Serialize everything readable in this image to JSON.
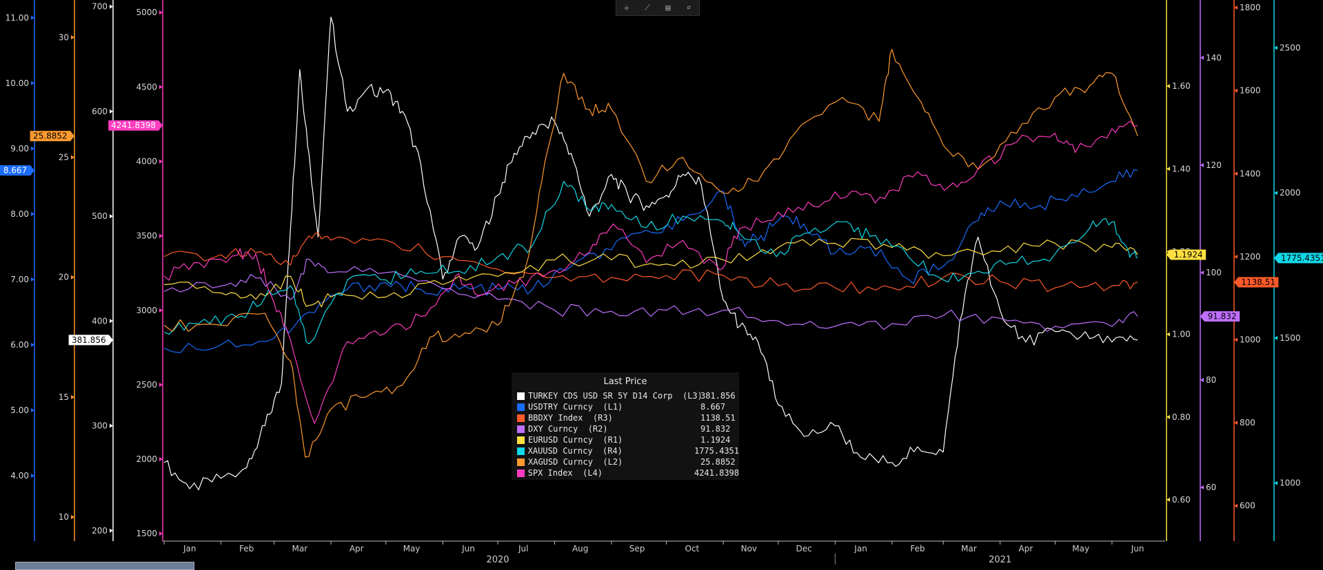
{
  "toolbar": {
    "icons": [
      "crosshair-icon",
      "draw-icon",
      "table-icon",
      "zoom-icon"
    ],
    "glyphs": [
      "✛",
      "⟋",
      "▤",
      "⌕"
    ]
  },
  "legend": {
    "title": "Last Price",
    "rows": [
      {
        "name": "TURKEY CDS USD SR 5Y D14 Corp  (L3)",
        "value": "381.856",
        "color": "#ffffff"
      },
      {
        "name": "USDTRY Curncy  (L1)",
        "value": "8.667",
        "color": "#1a6cff"
      },
      {
        "name": "BBDXY Index  (R3)",
        "value": "1138.51",
        "color": "#ff5a2a"
      },
      {
        "name": "DXY Curncy  (R2)",
        "value": "91.832",
        "color": "#c070ff"
      },
      {
        "name": "EURUSD Curncy  (R1)",
        "value": "1.1924",
        "color": "#ffe040"
      },
      {
        "name": "XAUUSD Curncy  (R4)",
        "value": "1775.4351",
        "color": "#10d8e8"
      },
      {
        "name": "XAGUSD Curncy  (L2)",
        "value": "25.8852",
        "color": "#ff9a30"
      },
      {
        "name": "SPX Index  (L4)",
        "value": "4241.8398",
        "color": "#ff3cc0"
      }
    ]
  },
  "chart_data": {
    "type": "line",
    "x_axis": {
      "months": [
        "Jan",
        "Feb",
        "Mar",
        "Apr",
        "May",
        "Jun",
        "Jul",
        "Aug",
        "Sep",
        "Oct",
        "Nov",
        "Dec",
        "Jan",
        "Feb",
        "Mar",
        "Apr",
        "May",
        "Jun"
      ],
      "years": [
        "2020",
        "2021"
      ],
      "range": [
        "2020-01-01",
        "2021-06-30"
      ]
    },
    "axes": {
      "L1": {
        "color": "#1a6cff",
        "ticks": [
          "4.00",
          "5.00",
          "6.00",
          "7.00",
          "8.00",
          "9.00",
          "10.00",
          "11.00"
        ],
        "range": [
          3.0,
          11.25
        ],
        "last": "8.667"
      },
      "L2": {
        "color": "#ff9a30",
        "ticks": [
          "10",
          "15",
          "20",
          "25",
          "30"
        ],
        "range": [
          9,
          31.5
        ],
        "last": "25.8852"
      },
      "L3": {
        "color": "#ffffff",
        "ticks": [
          "200",
          "300",
          "400",
          "500",
          "600",
          "700"
        ],
        "range": [
          190,
          705
        ],
        "last": "381.856"
      },
      "L4": {
        "color": "#ff3cc0",
        "ticks": [
          "1500",
          "2000",
          "2500",
          "3000",
          "3500",
          "4000",
          "4500",
          "5000"
        ],
        "range": [
          1450,
          5075
        ],
        "last": "4241.8398"
      },
      "R1": {
        "color": "#ffe040",
        "ticks": [
          "0.60",
          "0.80",
          "1.00",
          "1.20",
          "1.40",
          "1.60"
        ],
        "range": [
          0.5,
          1.805
        ],
        "last": "1.1924"
      },
      "R2": {
        "color": "#c070ff",
        "ticks": [
          "60",
          "80",
          "100",
          "120",
          "140"
        ],
        "range": [
          50,
          150.5
        ],
        "last": "91.832"
      },
      "R3": {
        "color": "#ff5a2a",
        "ticks": [
          "600",
          "800",
          "1000",
          "1200",
          "1400",
          "1600",
          "1800"
        ],
        "range": [
          515,
          1815
        ],
        "last": "1138.51"
      },
      "R4": {
        "color": "#10d8e8",
        "ticks": [
          "1000",
          "1500",
          "2000",
          "2500"
        ],
        "range": [
          800,
          2660
        ],
        "last": "1775.4351"
      }
    },
    "series": [
      {
        "name": "TURKEY CDS USD SR 5Y D14 Corp  (L3)",
        "axis": "L3",
        "color": "#ffffff",
        "x": [
          "2020-01-01",
          "2020-01-15",
          "2020-02-01",
          "2020-02-15",
          "2020-02-25",
          "2020-03-05",
          "2020-03-10",
          "2020-03-15",
          "2020-03-20",
          "2020-03-25",
          "2020-04-01",
          "2020-04-10",
          "2020-04-20",
          "2020-05-01",
          "2020-05-10",
          "2020-05-20",
          "2020-06-01",
          "2020-06-10",
          "2020-06-20",
          "2020-07-01",
          "2020-07-10",
          "2020-07-20",
          "2020-08-01",
          "2020-08-10",
          "2020-08-20",
          "2020-09-01",
          "2020-09-10",
          "2020-09-20",
          "2020-10-01",
          "2020-10-10",
          "2020-10-20",
          "2020-11-01",
          "2020-11-10",
          "2020-11-20",
          "2020-12-01",
          "2020-12-15",
          "2021-01-01",
          "2021-01-15",
          "2021-02-01",
          "2021-02-15",
          "2021-03-01",
          "2021-03-10",
          "2021-03-20",
          "2021-04-01",
          "2021-04-15",
          "2021-05-01",
          "2021-05-15",
          "2021-06-01",
          "2021-06-15"
        ],
        "y": [
          265,
          240,
          250,
          260,
          300,
          340,
          490,
          640,
          560,
          480,
          690,
          600,
          620,
          620,
          600,
          550,
          440,
          480,
          470,
          520,
          560,
          580,
          590,
          560,
          500,
          540,
          520,
          510,
          520,
          540,
          530,
          420,
          395,
          380,
          320,
          290,
          300,
          270,
          265,
          280,
          275,
          400,
          480,
          410,
          380,
          390,
          385,
          380,
          381.856
        ]
      },
      {
        "name": "USDTRY Curncy  (L1)",
        "axis": "L1",
        "color": "#1a6cff",
        "x": [
          "2020-01-01",
          "2020-02-01",
          "2020-03-01",
          "2020-03-20",
          "2020-04-10",
          "2020-05-01",
          "2020-05-20",
          "2020-06-10",
          "2020-07-01",
          "2020-07-20",
          "2020-08-10",
          "2020-09-01",
          "2020-09-20",
          "2020-10-10",
          "2020-11-01",
          "2020-11-10",
          "2020-11-20",
          "2020-12-01",
          "2020-12-15",
          "2021-01-01",
          "2021-01-20",
          "2021-02-10",
          "2021-03-01",
          "2021-03-20",
          "2021-04-01",
          "2021-04-20",
          "2021-05-10",
          "2021-06-01",
          "2021-06-15"
        ],
        "y": [
          5.95,
          6.0,
          6.1,
          6.5,
          6.85,
          6.95,
          6.85,
          6.85,
          6.85,
          6.85,
          7.2,
          7.45,
          7.75,
          7.9,
          8.35,
          7.6,
          7.6,
          7.9,
          7.85,
          7.4,
          7.5,
          7.0,
          7.2,
          7.9,
          8.2,
          8.1,
          8.3,
          8.5,
          8.667
        ]
      },
      {
        "name": "BBDXY Index  (R3)",
        "axis": "R3",
        "color": "#ff5a2a",
        "x": [
          "2020-01-01",
          "2020-02-01",
          "2020-02-20",
          "2020-03-10",
          "2020-03-20",
          "2020-04-01",
          "2020-05-01",
          "2020-06-01",
          "2020-07-01",
          "2020-08-01",
          "2020-09-01",
          "2020-10-01",
          "2020-11-01",
          "2020-12-01",
          "2021-01-01",
          "2021-02-01",
          "2021-03-01",
          "2021-04-01",
          "2021-05-01",
          "2021-06-01",
          "2021-06-15"
        ],
        "y": [
          1200,
          1205,
          1210,
          1180,
          1250,
          1240,
          1240,
          1200,
          1170,
          1150,
          1150,
          1155,
          1155,
          1130,
          1125,
          1125,
          1150,
          1140,
          1125,
          1130,
          1138.51
        ]
      },
      {
        "name": "DXY Curncy  (R2)",
        "axis": "R2",
        "color": "#c070ff",
        "x": [
          "2020-01-01",
          "2020-02-01",
          "2020-02-20",
          "2020-03-10",
          "2020-03-20",
          "2020-04-01",
          "2020-05-01",
          "2020-06-01",
          "2020-07-01",
          "2020-08-01",
          "2020-09-01",
          "2020-10-01",
          "2020-11-01",
          "2020-12-01",
          "2021-01-01",
          "2021-02-01",
          "2021-03-01",
          "2021-04-01",
          "2021-05-01",
          "2021-06-01",
          "2021-06-15"
        ],
        "y": [
          96.5,
          97.5,
          99,
          95,
          102.5,
          100,
          100,
          97,
          95,
          93,
          92.8,
          93,
          93,
          91,
          90,
          90.5,
          92,
          91.5,
          90,
          90,
          91.832
        ]
      },
      {
        "name": "EURUSD Curncy  (R1)",
        "axis": "R1",
        "color": "#ffe040",
        "x": [
          "2020-01-01",
          "2020-02-01",
          "2020-02-20",
          "2020-03-10",
          "2020-03-20",
          "2020-04-01",
          "2020-05-01",
          "2020-06-01",
          "2020-07-01",
          "2020-08-01",
          "2020-09-01",
          "2020-10-01",
          "2020-11-01",
          "2020-12-01",
          "2021-01-01",
          "2021-02-01",
          "2021-03-01",
          "2021-04-01",
          "2021-05-01",
          "2021-06-01",
          "2021-06-15"
        ],
        "y": [
          1.12,
          1.1,
          1.085,
          1.14,
          1.07,
          1.09,
          1.09,
          1.12,
          1.14,
          1.18,
          1.18,
          1.17,
          1.18,
          1.21,
          1.22,
          1.21,
          1.19,
          1.2,
          1.22,
          1.21,
          1.1924
        ]
      },
      {
        "name": "XAUUSD Curncy  (R4)",
        "axis": "R4",
        "color": "#10d8e8",
        "x": [
          "2020-01-01",
          "2020-01-20",
          "2020-02-10",
          "2020-02-25",
          "2020-03-10",
          "2020-03-20",
          "2020-04-10",
          "2020-05-01",
          "2020-05-20",
          "2020-06-10",
          "2020-07-01",
          "2020-07-20",
          "2020-08-06",
          "2020-08-20",
          "2020-09-01",
          "2020-09-20",
          "2020-10-10",
          "2020-11-01",
          "2020-11-10",
          "2020-11-30",
          "2020-12-15",
          "2021-01-05",
          "2021-01-20",
          "2021-02-10",
          "2021-03-01",
          "2021-03-20",
          "2021-04-10",
          "2021-05-01",
          "2021-05-20",
          "2021-06-01",
          "2021-06-10",
          "2021-06-15"
        ],
        "y": [
          1520,
          1550,
          1570,
          1640,
          1680,
          1480,
          1700,
          1700,
          1730,
          1730,
          1780,
          1820,
          2040,
          1940,
          1960,
          1880,
          1920,
          1900,
          1860,
          1780,
          1860,
          1900,
          1850,
          1780,
          1700,
          1730,
          1760,
          1790,
          1880,
          1900,
          1800,
          1775.4351
        ]
      },
      {
        "name": "XAGUSD Curncy  (L2)",
        "axis": "L2",
        "color": "#ff9a30",
        "x": [
          "2020-01-01",
          "2020-02-01",
          "2020-02-25",
          "2020-03-10",
          "2020-03-18",
          "2020-04-01",
          "2020-04-20",
          "2020-05-10",
          "2020-05-25",
          "2020-06-10",
          "2020-07-01",
          "2020-07-15",
          "2020-07-25",
          "2020-08-06",
          "2020-08-20",
          "2020-09-01",
          "2020-09-20",
          "2020-10-10",
          "2020-11-01",
          "2020-11-20",
          "2020-12-10",
          "2021-01-05",
          "2021-01-25",
          "2021-02-01",
          "2021-02-15",
          "2021-03-01",
          "2021-03-20",
          "2021-04-10",
          "2021-05-01",
          "2021-05-20",
          "2021-06-01",
          "2021-06-15"
        ],
        "y": [
          18,
          18,
          18.5,
          16.5,
          12.5,
          14.5,
          15,
          15.5,
          17.5,
          17.5,
          18,
          20,
          24,
          28.5,
          27,
          27,
          24,
          25,
          23.5,
          24,
          26,
          27.5,
          26.5,
          29.5,
          27.5,
          25.5,
          24.5,
          26,
          27.5,
          28,
          28.5,
          25.8852
        ]
      },
      {
        "name": "SPX Index  (L4)",
        "axis": "L4",
        "color": "#ff3cc0",
        "x": [
          "2020-01-01",
          "2020-01-20",
          "2020-02-10",
          "2020-02-20",
          "2020-03-01",
          "2020-03-10",
          "2020-03-23",
          "2020-04-10",
          "2020-05-01",
          "2020-05-20",
          "2020-06-08",
          "2020-06-20",
          "2020-07-10",
          "2020-08-01",
          "2020-08-20",
          "2020-09-02",
          "2020-09-20",
          "2020-10-10",
          "2020-10-30",
          "2020-11-10",
          "2020-12-01",
          "2020-12-20",
          "2021-01-10",
          "2021-01-28",
          "2021-02-15",
          "2021-03-04",
          "2021-03-20",
          "2021-04-10",
          "2021-05-01",
          "2021-05-12",
          "2021-06-01",
          "2021-06-15"
        ],
        "y": [
          3230,
          3320,
          3370,
          3380,
          3050,
          2800,
          2240,
          2790,
          2850,
          2960,
          3230,
          3100,
          3180,
          3270,
          3390,
          3580,
          3320,
          3470,
          3270,
          3550,
          3660,
          3700,
          3800,
          3750,
          3930,
          3830,
          3950,
          4130,
          4190,
          4060,
          4220,
          4241.8398
        ]
      }
    ]
  }
}
